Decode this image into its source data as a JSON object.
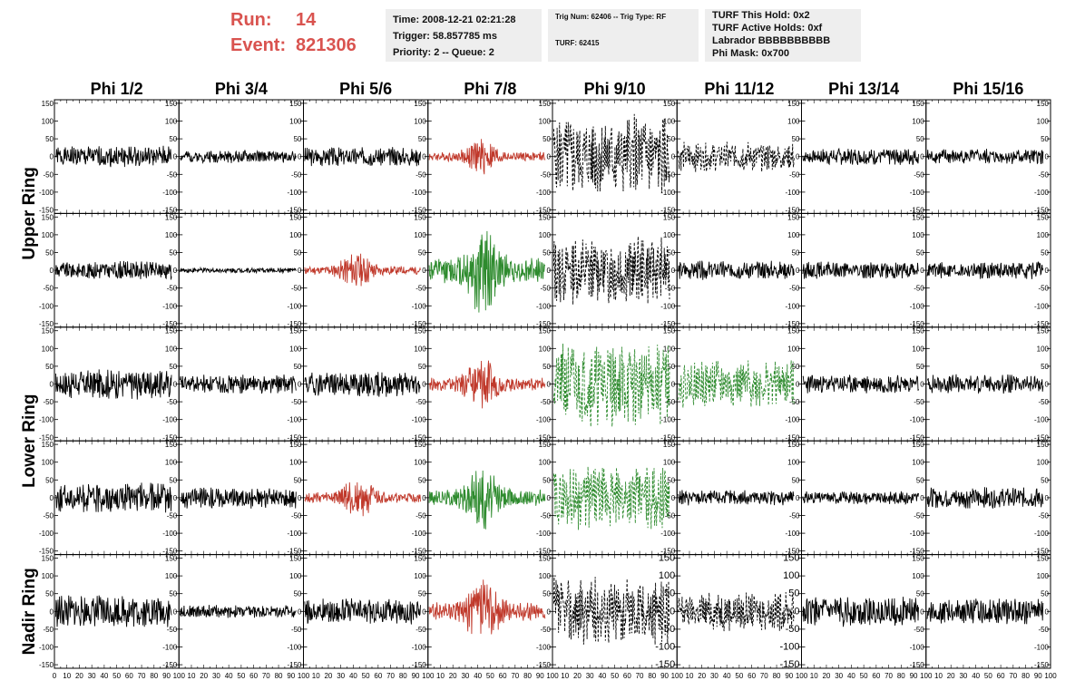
{
  "header": {
    "run_label": "Run:",
    "run_value": "14",
    "event_label": "Event:",
    "event_value": "821306",
    "info1": [
      "Time: 2008-12-21 02:21:28",
      "Trigger: 58.857785 ms",
      "Priority: 2 -- Queue: 2"
    ],
    "info2": [
      "Trig Num: 62406 -- Trig Type: RF",
      "TURF: 62415"
    ],
    "info3": [
      "TURF This Hold: 0x2",
      "TURF Active Holds: 0xf",
      "Labrador BBBBBBBBBB",
      "Phi Mask: 0x700"
    ]
  },
  "chart_data": {
    "type": "line",
    "columns": [
      "Phi 1/2",
      "Phi 3/4",
      "Phi 5/6",
      "Phi 7/8",
      "Phi 9/10",
      "Phi 11/12",
      "Phi 13/14",
      "Phi 15/16"
    ],
    "ring_labels": [
      "Upper Ring",
      "Lower Ring",
      "Nadir Ring"
    ],
    "rows": 5,
    "xlim": [
      0,
      100
    ],
    "ylim": [
      -160,
      160
    ],
    "y_ticks": [
      -150,
      -100,
      -50,
      0,
      50,
      100,
      150
    ],
    "x_ticks": [
      0,
      10,
      20,
      30,
      40,
      50,
      60,
      70,
      80,
      90,
      100
    ],
    "colors": {
      "normal": "#000000",
      "red": "#c0392b",
      "green": "#2e8b2e"
    },
    "panels": [
      [
        {
          "amp": 25,
          "color": "normal",
          "dashed": false,
          "burst": 0,
          "seed": 1
        },
        {
          "amp": 15,
          "color": "normal",
          "dashed": false,
          "burst": 0,
          "seed": 2
        },
        {
          "amp": 22,
          "color": "normal",
          "dashed": false,
          "burst": 0,
          "seed": 3
        },
        {
          "amp": 30,
          "color": "red",
          "dashed": false,
          "burst": 1,
          "seed": 4
        },
        {
          "amp": 100,
          "color": "normal",
          "dashed": true,
          "burst": 0,
          "seed": 5
        },
        {
          "amp": 35,
          "color": "normal",
          "dashed": true,
          "burst": 0,
          "seed": 6
        },
        {
          "amp": 20,
          "color": "normal",
          "dashed": false,
          "burst": 0,
          "seed": 7
        },
        {
          "amp": 18,
          "color": "normal",
          "dashed": false,
          "burst": 0,
          "seed": 8
        }
      ],
      [
        {
          "amp": 22,
          "color": "normal",
          "dashed": false,
          "burst": 0,
          "seed": 9
        },
        {
          "amp": 6,
          "color": "normal",
          "dashed": false,
          "burst": 0,
          "seed": 10
        },
        {
          "amp": 30,
          "color": "red",
          "dashed": false,
          "burst": 1,
          "seed": 11
        },
        {
          "amp": 85,
          "color": "green",
          "dashed": false,
          "burst": 1,
          "seed": 12
        },
        {
          "amp": 80,
          "color": "normal",
          "dashed": true,
          "burst": 0,
          "seed": 13
        },
        {
          "amp": 22,
          "color": "normal",
          "dashed": false,
          "burst": 0,
          "seed": 14
        },
        {
          "amp": 20,
          "color": "normal",
          "dashed": false,
          "burst": 0,
          "seed": 15
        },
        {
          "amp": 20,
          "color": "normal",
          "dashed": false,
          "burst": 0,
          "seed": 16
        }
      ],
      [
        {
          "amp": 35,
          "color": "normal",
          "dashed": false,
          "burst": 0,
          "seed": 17
        },
        {
          "amp": 22,
          "color": "normal",
          "dashed": false,
          "burst": 0,
          "seed": 18
        },
        {
          "amp": 30,
          "color": "normal",
          "dashed": false,
          "burst": 0,
          "seed": 19
        },
        {
          "amp": 45,
          "color": "red",
          "dashed": false,
          "burst": 1,
          "seed": 20
        },
        {
          "amp": 100,
          "color": "green",
          "dashed": true,
          "burst": 0,
          "seed": 21
        },
        {
          "amp": 55,
          "color": "green",
          "dashed": true,
          "burst": 0,
          "seed": 22
        },
        {
          "amp": 22,
          "color": "normal",
          "dashed": false,
          "burst": 0,
          "seed": 23
        },
        {
          "amp": 22,
          "color": "normal",
          "dashed": false,
          "burst": 0,
          "seed": 24
        }
      ],
      [
        {
          "amp": 35,
          "color": "normal",
          "dashed": false,
          "burst": 0,
          "seed": 25
        },
        {
          "amp": 25,
          "color": "normal",
          "dashed": false,
          "burst": 0,
          "seed": 26
        },
        {
          "amp": 35,
          "color": "red",
          "dashed": false,
          "burst": 1,
          "seed": 27
        },
        {
          "amp": 55,
          "color": "green",
          "dashed": false,
          "burst": 1,
          "seed": 28
        },
        {
          "amp": 75,
          "color": "green",
          "dashed": true,
          "burst": 0,
          "seed": 29
        },
        {
          "amp": 18,
          "color": "normal",
          "dashed": false,
          "burst": 0,
          "seed": 30
        },
        {
          "amp": 15,
          "color": "normal",
          "dashed": false,
          "burst": 0,
          "seed": 31
        },
        {
          "amp": 25,
          "color": "normal",
          "dashed": false,
          "burst": 0,
          "seed": 32
        }
      ],
      [
        {
          "amp": 38,
          "color": "normal",
          "dashed": false,
          "burst": 0,
          "seed": 33
        },
        {
          "amp": 15,
          "color": "normal",
          "dashed": false,
          "burst": 0,
          "seed": 34
        },
        {
          "amp": 30,
          "color": "normal",
          "dashed": false,
          "burst": 0,
          "seed": 35
        },
        {
          "amp": 60,
          "color": "red",
          "dashed": false,
          "burst": 1,
          "seed": 36
        },
        {
          "amp": 80,
          "color": "normal",
          "dashed": true,
          "burst": 0,
          "seed": 37
        },
        {
          "amp": 45,
          "color": "normal",
          "dashed": true,
          "burst": 0,
          "seed": 38
        },
        {
          "amp": 35,
          "color": "normal",
          "dashed": false,
          "burst": 0,
          "seed": 39
        },
        {
          "amp": 30,
          "color": "normal",
          "dashed": false,
          "burst": 0,
          "seed": 40
        }
      ]
    ]
  }
}
